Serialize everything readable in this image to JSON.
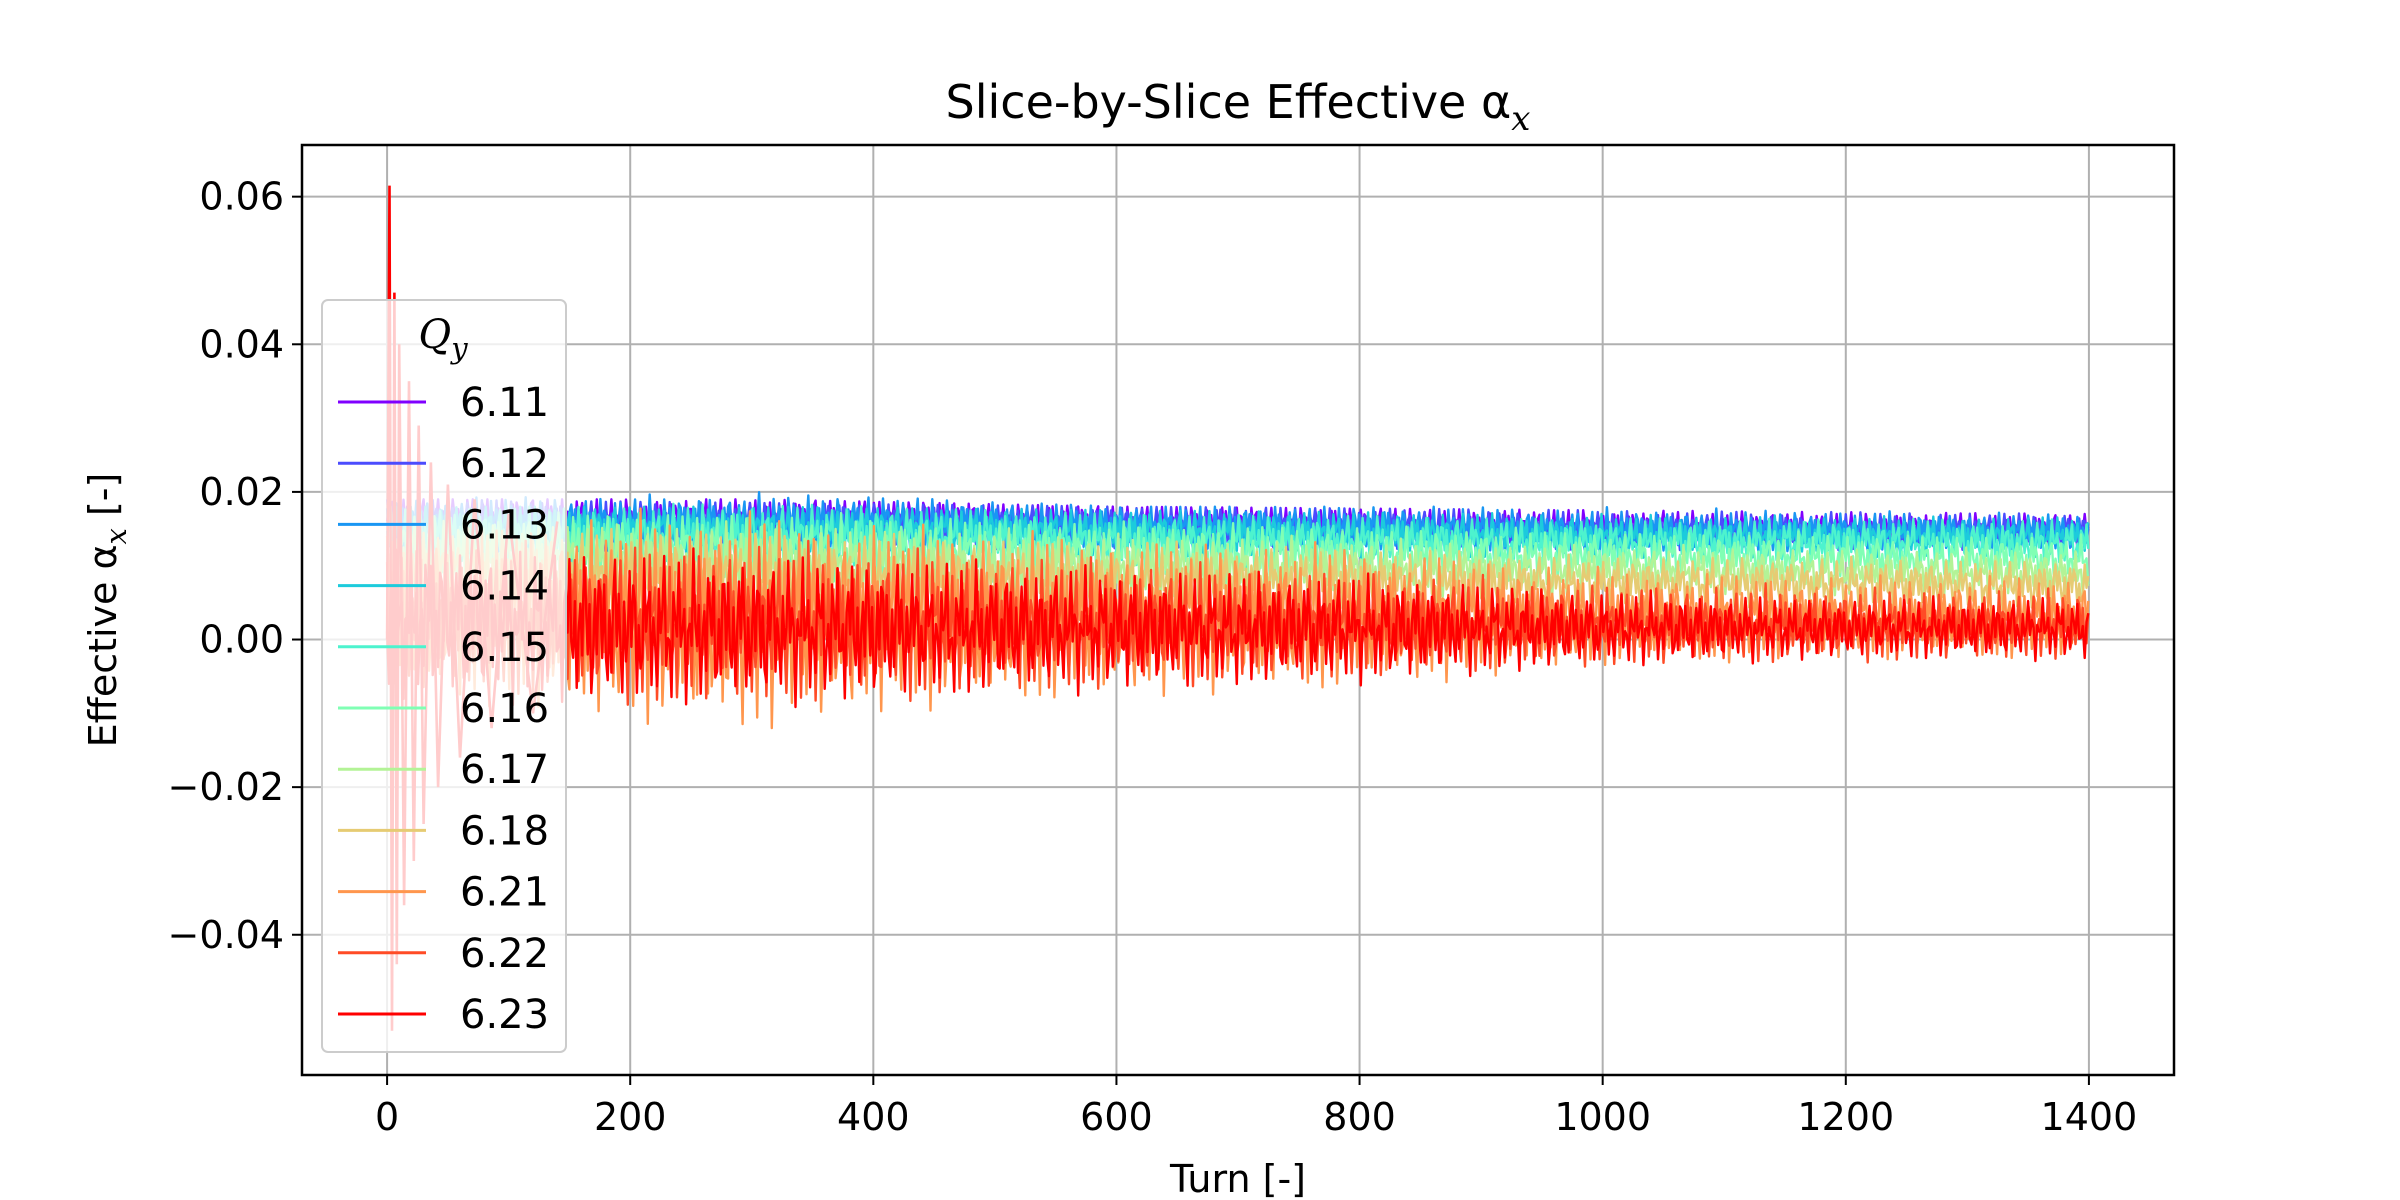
{
  "chart_data": {
    "type": "line",
    "title": "Slice-by-Slice Effective α",
    "title_sub": "x",
    "xlabel": "Turn [-]",
    "ylabel_prefix": "Effective α",
    "ylabel_sub": "x",
    "ylabel_suffix": " [-]",
    "xlim": [
      -70,
      1470
    ],
    "ylim": [
      -0.059,
      0.067
    ],
    "xticks": [
      0,
      200,
      400,
      600,
      800,
      1000,
      1200,
      1400
    ],
    "xtick_labels": [
      "0",
      "200",
      "400",
      "600",
      "800",
      "1000",
      "1200",
      "1400"
    ],
    "yticks": [
      -0.04,
      -0.02,
      0.0,
      0.02,
      0.04,
      0.06
    ],
    "ytick_labels": [
      "−0.04",
      "−0.02",
      "0.00",
      "0.02",
      "0.04",
      "0.06"
    ],
    "grid": true,
    "legend": {
      "title": "Q",
      "title_sub": "y",
      "placement": "left",
      "entries": [
        "6.11",
        "6.12",
        "6.13",
        "6.14",
        "6.15",
        "6.16",
        "6.17",
        "6.18",
        "6.21",
        "6.22",
        "6.23"
      ]
    },
    "series": [
      {
        "name": "6.11",
        "color": "#8000ff",
        "points": [
          [
            0,
            0.016
          ],
          [
            50,
            0.0165
          ],
          [
            200,
            0.0158
          ],
          [
            400,
            0.0162
          ],
          [
            600,
            0.0155
          ],
          [
            800,
            0.0153
          ],
          [
            1000,
            0.015
          ],
          [
            1200,
            0.0148
          ],
          [
            1400,
            0.0148
          ]
        ],
        "envelope": [
          [
            0,
            0.011,
            0.019
          ],
          [
            300,
            0.011,
            0.019
          ],
          [
            600,
            0.0105,
            0.018
          ],
          [
            1000,
            0.0115,
            0.0175
          ],
          [
            1400,
            0.0115,
            0.017
          ]
        ]
      },
      {
        "name": "6.12",
        "color": "#4b4cfe",
        "points": [
          [
            0,
            0.0158
          ],
          [
            200,
            0.0156
          ],
          [
            400,
            0.016
          ],
          [
            600,
            0.0154
          ],
          [
            800,
            0.0152
          ],
          [
            1000,
            0.0148
          ],
          [
            1200,
            0.0147
          ],
          [
            1400,
            0.0147
          ]
        ],
        "envelope": [
          [
            0,
            0.011,
            0.019
          ],
          [
            300,
            0.011,
            0.0185
          ],
          [
            600,
            0.0105,
            0.018
          ],
          [
            1000,
            0.0115,
            0.0175
          ],
          [
            1400,
            0.0115,
            0.017
          ]
        ]
      },
      {
        "name": "6.13",
        "color": "#1996f3",
        "points": [
          [
            0,
            0.0155
          ],
          [
            200,
            0.0155
          ],
          [
            400,
            0.0158
          ],
          [
            600,
            0.0152
          ],
          [
            800,
            0.015
          ],
          [
            1000,
            0.0146
          ],
          [
            1200,
            0.0146
          ],
          [
            1400,
            0.0145
          ]
        ],
        "envelope": [
          [
            0,
            0.0105,
            0.019
          ],
          [
            300,
            0.011,
            0.02
          ],
          [
            600,
            0.0105,
            0.018
          ],
          [
            1000,
            0.011,
            0.018
          ],
          [
            1400,
            0.0115,
            0.017
          ]
        ]
      },
      {
        "name": "6.14",
        "color": "#1ccbdc",
        "points": [
          [
            0,
            0.015
          ],
          [
            200,
            0.015
          ],
          [
            400,
            0.015
          ],
          [
            600,
            0.0145
          ],
          [
            800,
            0.0143
          ],
          [
            1000,
            0.014
          ],
          [
            1200,
            0.014
          ],
          [
            1400,
            0.014
          ]
        ],
        "envelope": [
          [
            0,
            0.01,
            0.018
          ],
          [
            300,
            0.0105,
            0.018
          ],
          [
            600,
            0.0095,
            0.0175
          ],
          [
            1000,
            0.0105,
            0.017
          ],
          [
            1400,
            0.0105,
            0.0165
          ]
        ]
      },
      {
        "name": "6.15",
        "color": "#4df3ce",
        "points": [
          [
            0,
            0.014
          ],
          [
            200,
            0.014
          ],
          [
            400,
            0.0142
          ],
          [
            600,
            0.0135
          ],
          [
            800,
            0.0135
          ],
          [
            1000,
            0.0132
          ],
          [
            1200,
            0.0132
          ],
          [
            1400,
            0.013
          ]
        ],
        "envelope": [
          [
            0,
            0.009,
            0.018
          ],
          [
            300,
            0.009,
            0.0185
          ],
          [
            600,
            0.009,
            0.017
          ],
          [
            1000,
            0.0095,
            0.0165
          ],
          [
            1400,
            0.0095,
            0.0165
          ]
        ]
      },
      {
        "name": "6.16",
        "color": "#80ffb4",
        "points": [
          [
            0,
            0.013
          ],
          [
            200,
            0.0125
          ],
          [
            400,
            0.012
          ],
          [
            600,
            0.0115
          ],
          [
            800,
            0.0115
          ],
          [
            1000,
            0.0112
          ],
          [
            1200,
            0.011
          ],
          [
            1400,
            0.0108
          ]
        ],
        "envelope": [
          [
            0,
            0.007,
            0.017
          ],
          [
            300,
            0.007,
            0.0175
          ],
          [
            600,
            0.0065,
            0.016
          ],
          [
            1000,
            0.0075,
            0.015
          ],
          [
            1400,
            0.0075,
            0.0145
          ]
        ]
      },
      {
        "name": "6.17",
        "color": "#b3f396",
        "points": [
          [
            0,
            0.011
          ],
          [
            200,
            0.0105
          ],
          [
            400,
            0.01
          ],
          [
            600,
            0.0095
          ],
          [
            800,
            0.0095
          ],
          [
            1000,
            0.0092
          ],
          [
            1200,
            0.009
          ],
          [
            1400,
            0.0088
          ]
        ],
        "envelope": [
          [
            0,
            0.005,
            0.016
          ],
          [
            300,
            0.005,
            0.0165
          ],
          [
            600,
            0.0045,
            0.015
          ],
          [
            1000,
            0.006,
            0.0135
          ],
          [
            1400,
            0.006,
            0.013
          ]
        ]
      },
      {
        "name": "6.18",
        "color": "#e6cb73",
        "points": [
          [
            0,
            0.009
          ],
          [
            200,
            0.0085
          ],
          [
            400,
            0.008
          ],
          [
            600,
            0.0078
          ],
          [
            800,
            0.0078
          ],
          [
            1000,
            0.0076
          ],
          [
            1200,
            0.0075
          ],
          [
            1400,
            0.0073
          ]
        ],
        "envelope": [
          [
            0,
            0.002,
            0.015
          ],
          [
            300,
            0.002,
            0.016
          ],
          [
            600,
            0.002,
            0.014
          ],
          [
            1000,
            0.004,
            0.012
          ],
          [
            1400,
            0.004,
            0.0115
          ]
        ]
      },
      {
        "name": "6.21",
        "color": "#ff964d",
        "points": [
          [
            0,
            0.004
          ],
          [
            200,
            0.003
          ],
          [
            300,
            0.0025
          ],
          [
            400,
            0.003
          ],
          [
            600,
            0.003
          ],
          [
            800,
            0.003
          ],
          [
            1000,
            0.003
          ],
          [
            1200,
            0.003
          ],
          [
            1400,
            0.003
          ]
        ],
        "envelope": [
          [
            0,
            -0.008,
            0.016
          ],
          [
            280,
            -0.014,
            0.019
          ],
          [
            400,
            -0.012,
            0.016
          ],
          [
            600,
            -0.009,
            0.014
          ],
          [
            800,
            -0.008,
            0.013
          ],
          [
            1000,
            -0.004,
            0.01
          ],
          [
            1200,
            -0.003,
            0.009
          ],
          [
            1400,
            -0.003,
            0.009
          ]
        ]
      },
      {
        "name": "6.22",
        "color": "#ff4b26",
        "points": [
          [
            0,
            0.003
          ],
          [
            200,
            0.002
          ],
          [
            400,
            0.002
          ],
          [
            600,
            0.002
          ],
          [
            800,
            0.002
          ],
          [
            1000,
            0.002
          ],
          [
            1200,
            0.002
          ],
          [
            1400,
            0.002
          ]
        ],
        "envelope": [
          [
            0,
            -0.008,
            0.013
          ],
          [
            300,
            -0.01,
            0.014
          ],
          [
            600,
            -0.008,
            0.011
          ],
          [
            1000,
            -0.004,
            0.008
          ],
          [
            1400,
            -0.003,
            0.007
          ]
        ]
      },
      {
        "name": "6.23",
        "color": "#ff0000",
        "points": [
          [
            0,
            0.003
          ],
          [
            200,
            0.0015
          ],
          [
            400,
            0.0015
          ],
          [
            600,
            0.0015
          ],
          [
            800,
            0.0015
          ],
          [
            1000,
            0.0015
          ],
          [
            1200,
            0.0015
          ],
          [
            1400,
            0.0015
          ]
        ],
        "envelope": [
          [
            0,
            -0.01,
            0.013
          ],
          [
            200,
            -0.01,
            0.013
          ],
          [
            400,
            -0.009,
            0.012
          ],
          [
            600,
            -0.008,
            0.01
          ],
          [
            800,
            -0.007,
            0.009
          ],
          [
            1000,
            -0.004,
            0.007
          ],
          [
            1200,
            -0.003,
            0.006
          ],
          [
            1400,
            -0.003,
            0.006
          ]
        ]
      }
    ],
    "initial_transient": {
      "turns": [
        0,
        2,
        4,
        6,
        8,
        10,
        14,
        18,
        22,
        26,
        30,
        36,
        42,
        50,
        60,
        72,
        86,
        100,
        120,
        140
      ],
      "values": [
        0.0,
        0.0615,
        -0.053,
        0.047,
        -0.044,
        0.04,
        -0.036,
        0.035,
        -0.03,
        0.029,
        -0.025,
        0.024,
        -0.02,
        0.021,
        -0.016,
        0.019,
        -0.012,
        0.017,
        -0.01,
        0.016
      ]
    }
  }
}
